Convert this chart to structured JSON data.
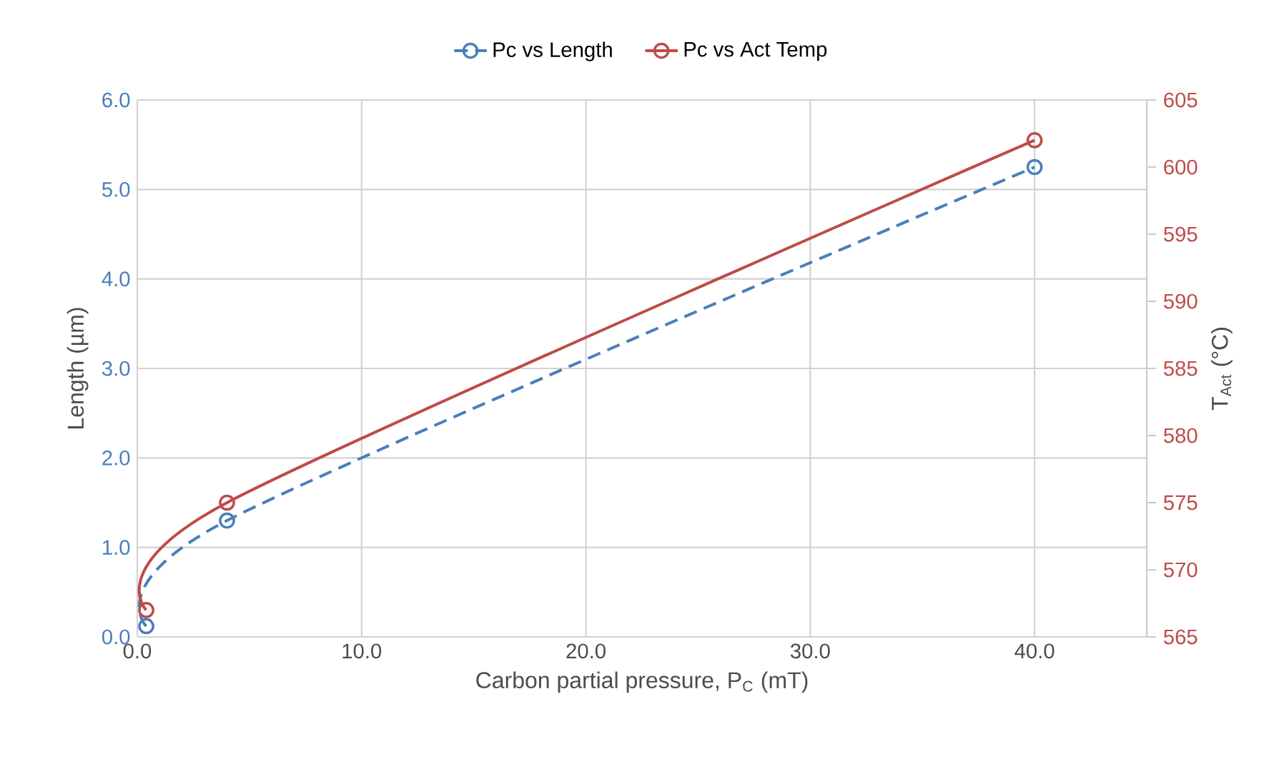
{
  "chart_data": {
    "type": "line",
    "xlabel": "Carbon partial pressure, P$_{C}$ (mT)",
    "ylabel": "Length (µm)",
    "y2label": "T$_{Act}$ (°C)",
    "x": [
      0.4,
      4,
      40
    ],
    "series": [
      {
        "name": "Pc vs Length",
        "color": "#4a7ebb",
        "values": [
          0.12,
          1.3,
          5.25
        ],
        "line_style": "dashed"
      },
      {
        "name": "Pc vs Act Temp",
        "color": "#be4b48",
        "values": [
          567,
          575,
          602
        ],
        "axis": "y2",
        "line_style": "solid"
      }
    ],
    "xlim": [
      0,
      45
    ],
    "xticks": [
      {
        "value": 0,
        "label": "0.0"
      },
      {
        "value": 10,
        "label": "10.0"
      },
      {
        "value": 20,
        "label": "20.0"
      },
      {
        "value": 30,
        "label": "30.0"
      },
      {
        "value": 40,
        "label": "40.0"
      }
    ],
    "ylim": [
      0,
      6
    ],
    "yticks": [
      {
        "value": 0,
        "label": "0.0"
      },
      {
        "value": 1,
        "label": "1.0"
      },
      {
        "value": 2,
        "label": "2.0"
      },
      {
        "value": 3,
        "label": "3.0"
      },
      {
        "value": 4,
        "label": "4.0"
      },
      {
        "value": 5,
        "label": "5.0"
      },
      {
        "value": 6,
        "label": "6.0"
      }
    ],
    "y2lim": [
      565,
      605
    ],
    "y2ticks": [
      565,
      570,
      575,
      580,
      585,
      590,
      595,
      600,
      605
    ],
    "grid": true,
    "legend": "top",
    "marker": "circle"
  }
}
